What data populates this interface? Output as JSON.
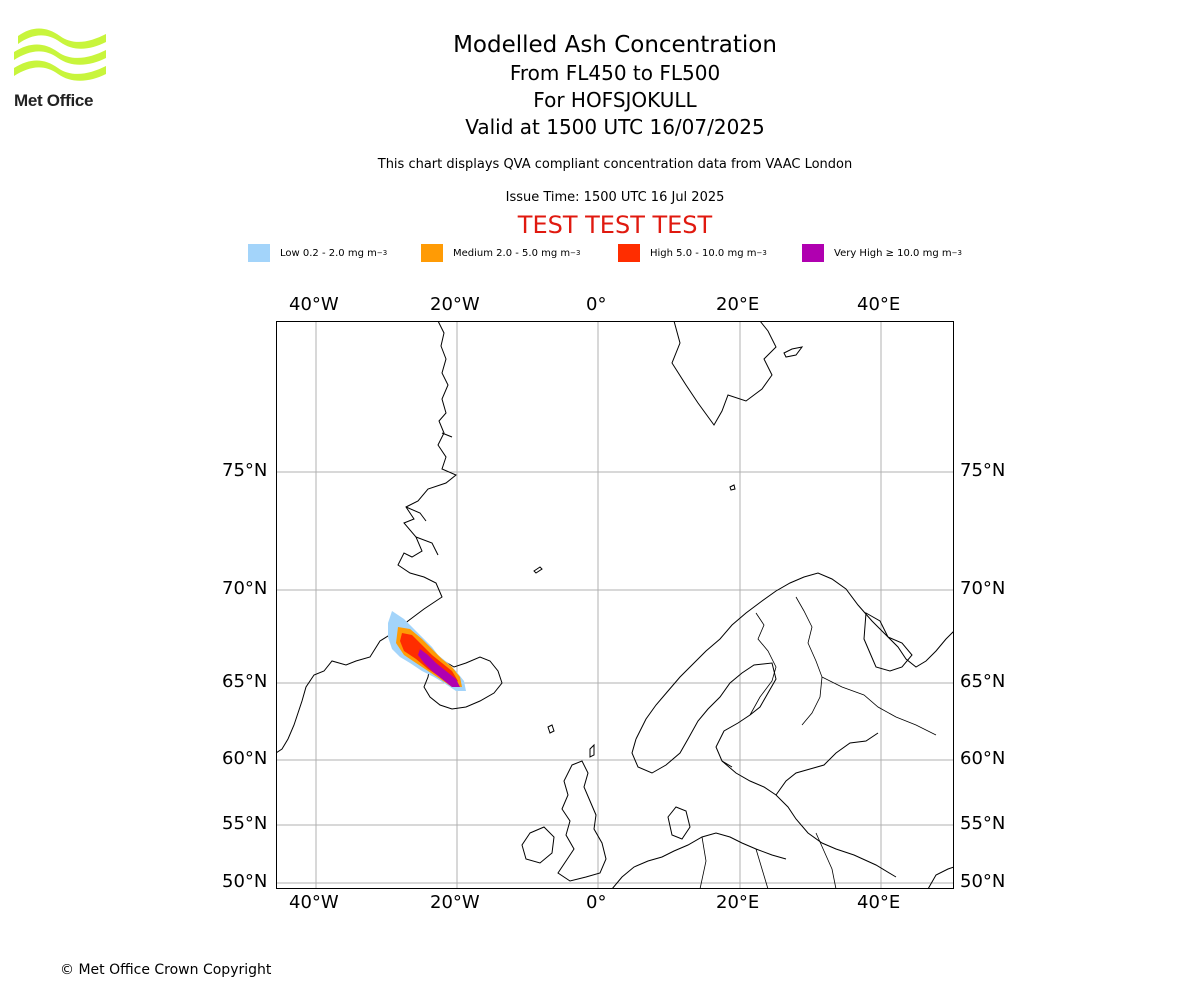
{
  "logo": {
    "text": "Met Office",
    "color": "#c8f53c"
  },
  "header": {
    "title": "Modelled Ash Concentration",
    "levels": "From FL450 to FL500",
    "volcano": "For HOFSJOKULL",
    "valid": "Valid at 1500 UTC 16/07/2025",
    "description": "This chart displays QVA compliant concentration data from VAAC London",
    "issue_time": "Issue Time: 1500 UTC 16 Jul 2025",
    "test_banner": "TEST TEST TEST"
  },
  "legend": {
    "items": [
      {
        "label": "Low 0.2 - 2.0 mg m",
        "sup": "−3",
        "color": "#a3d4fa"
      },
      {
        "label": "Medium 2.0 - 5.0 mg m",
        "sup": "−3",
        "color": "#ff9b05"
      },
      {
        "label": "High 5.0 - 10.0 mg m",
        "sup": "−3",
        "color": "#ff2d00"
      },
      {
        "label": "Very High  ≥  10.0 mg m",
        "sup": "−3",
        "color": "#b000b0"
      }
    ]
  },
  "map": {
    "lon_labels": [
      "40°W",
      "20°W",
      "0°",
      "20°E",
      "40°E"
    ],
    "lat_labels": [
      "75°N",
      "70°N",
      "65°N",
      "60°N",
      "55°N",
      "50°N"
    ],
    "extent": {
      "lon_min": -45.5,
      "lon_max": 50.5,
      "lat_min": 49.5,
      "lat_max": 80
    },
    "grid": true
  },
  "footer": {
    "copyright": "© Met Office Crown Copyright"
  }
}
